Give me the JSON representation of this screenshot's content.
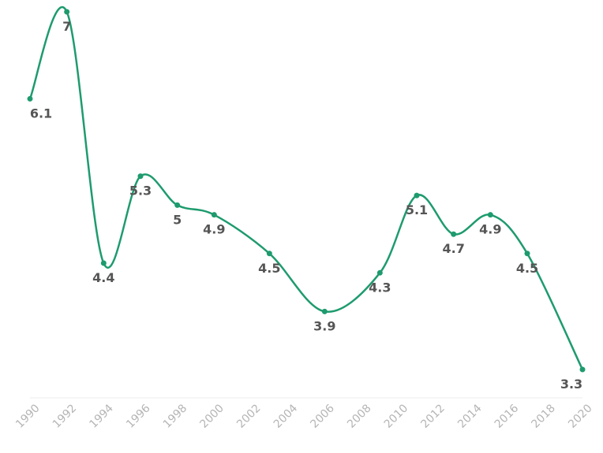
{
  "chart_data": {
    "type": "line",
    "title": "",
    "xlabel": "",
    "ylabel": "",
    "x": [
      1990,
      1992,
      1994,
      1996,
      1998,
      2000,
      2003,
      2006,
      2009,
      2011,
      2013,
      2015,
      2017,
      2020
    ],
    "series": [
      {
        "values": [
          6.1,
          7,
          4.4,
          5.3,
          5,
          4.9,
          4.5,
          3.9,
          4.3,
          5.1,
          4.7,
          4.9,
          4.5,
          3.3
        ],
        "labels": [
          "6.1",
          "7",
          "4.4",
          "5.3",
          "5",
          "4.9",
          "4.5",
          "3.9",
          "4.3",
          "5.1",
          "4.7",
          "4.9",
          "4.5",
          "3.3"
        ],
        "color": "#1e9b6e"
      }
    ],
    "x_ticks": [
      "1990",
      "1992",
      "1994",
      "1996",
      "1998",
      "2000",
      "2002",
      "2004",
      "2006",
      "2008",
      "2010",
      "2012",
      "2014",
      "2016",
      "2018",
      "2020"
    ],
    "xlim": [
      1990,
      2020
    ],
    "ylim": [
      3.3,
      7
    ],
    "y_axis_visible": false,
    "grid": false,
    "smooth": true,
    "label_color": "#555555",
    "tick_color": "#b5b5b5"
  }
}
